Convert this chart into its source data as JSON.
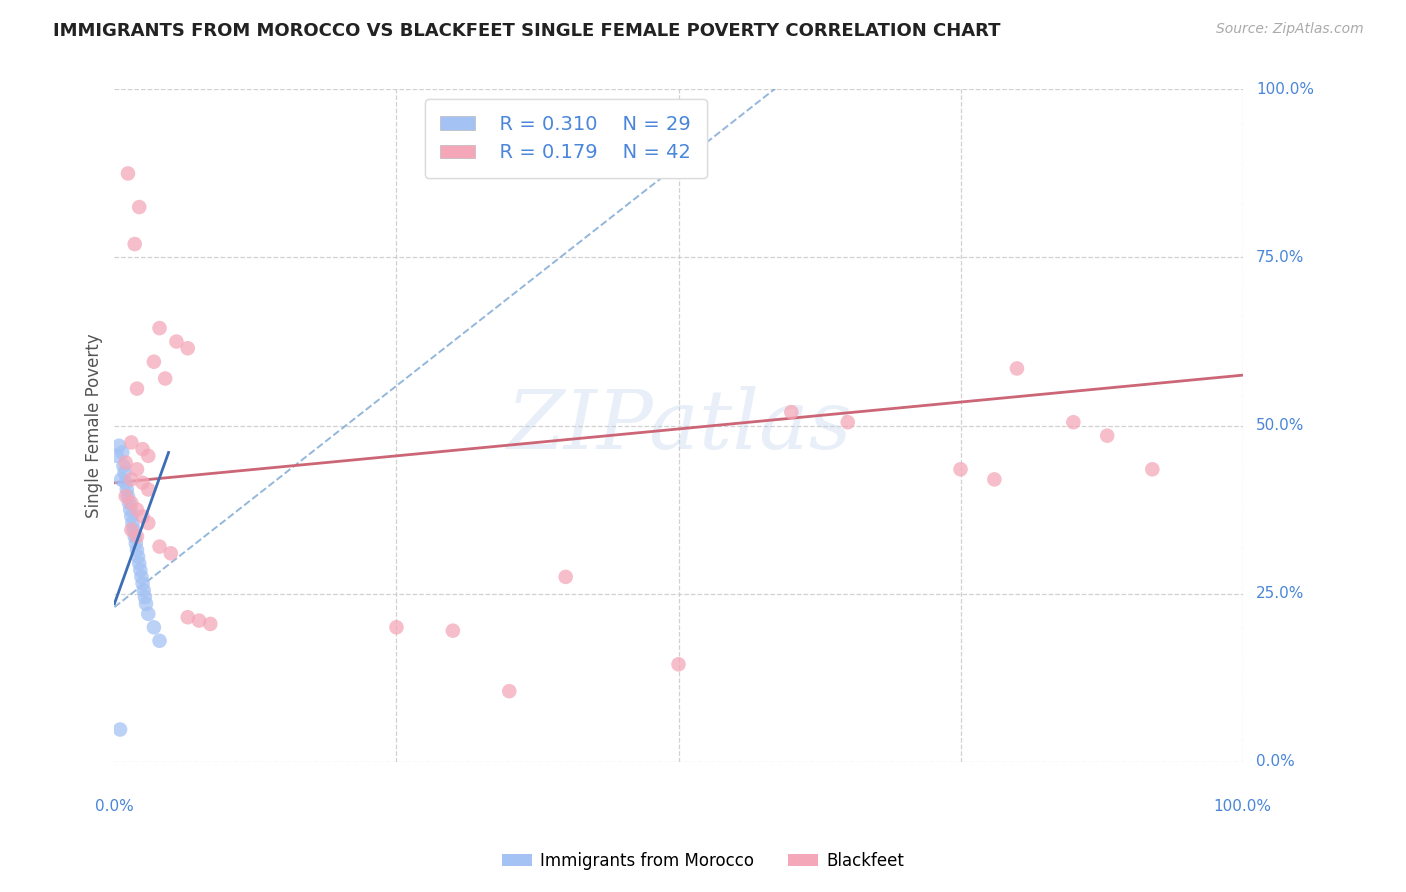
{
  "title": "IMMIGRANTS FROM MOROCCO VS BLACKFEET SINGLE FEMALE POVERTY CORRELATION CHART",
  "source": "Source: ZipAtlas.com",
  "ylabel": "Single Female Poverty",
  "xlim": [
    0.0,
    1.0
  ],
  "ylim": [
    0.0,
    1.0
  ],
  "ytick_values": [
    0.0,
    0.25,
    0.5,
    0.75,
    1.0
  ],
  "xtick_values": [
    0.0,
    0.25,
    0.5,
    0.75,
    1.0
  ],
  "watermark": "ZIPatlas",
  "legend_r1": "R = 0.310",
  "legend_n1": "N = 29",
  "legend_r2": "R = 0.179",
  "legend_n2": "N = 42",
  "blue_scatter_color": "#a4c2f4",
  "pink_scatter_color": "#f4a7b9",
  "blue_line_color": "#6699cc",
  "blue_solid_color": "#3d6eb5",
  "pink_line_color": "#cc6677",
  "grid_color": "#cccccc",
  "background_color": "#ffffff",
  "title_color": "#222222",
  "axis_label_color": "#555555",
  "tick_color": "#4a86d9",
  "legend_text_color": "#4a86d9",
  "morocco_points": [
    [
      0.002,
      0.455
    ],
    [
      0.004,
      0.47
    ],
    [
      0.006,
      0.42
    ],
    [
      0.007,
      0.46
    ],
    [
      0.008,
      0.44
    ],
    [
      0.009,
      0.43
    ],
    [
      0.01,
      0.415
    ],
    [
      0.011,
      0.405
    ],
    [
      0.012,
      0.395
    ],
    [
      0.013,
      0.385
    ],
    [
      0.014,
      0.375
    ],
    [
      0.015,
      0.365
    ],
    [
      0.016,
      0.355
    ],
    [
      0.017,
      0.345
    ],
    [
      0.018,
      0.335
    ],
    [
      0.019,
      0.325
    ],
    [
      0.02,
      0.315
    ],
    [
      0.021,
      0.305
    ],
    [
      0.022,
      0.295
    ],
    [
      0.023,
      0.285
    ],
    [
      0.024,
      0.275
    ],
    [
      0.025,
      0.265
    ],
    [
      0.026,
      0.255
    ],
    [
      0.027,
      0.245
    ],
    [
      0.028,
      0.235
    ],
    [
      0.03,
      0.22
    ],
    [
      0.035,
      0.2
    ],
    [
      0.04,
      0.18
    ],
    [
      0.005,
      0.048
    ]
  ],
  "blackfeet_points": [
    [
      0.012,
      0.875
    ],
    [
      0.022,
      0.825
    ],
    [
      0.018,
      0.77
    ],
    [
      0.04,
      0.645
    ],
    [
      0.055,
      0.625
    ],
    [
      0.065,
      0.615
    ],
    [
      0.035,
      0.595
    ],
    [
      0.045,
      0.57
    ],
    [
      0.02,
      0.555
    ],
    [
      0.015,
      0.475
    ],
    [
      0.025,
      0.465
    ],
    [
      0.03,
      0.455
    ],
    [
      0.01,
      0.445
    ],
    [
      0.02,
      0.435
    ],
    [
      0.015,
      0.42
    ],
    [
      0.025,
      0.415
    ],
    [
      0.03,
      0.405
    ],
    [
      0.01,
      0.395
    ],
    [
      0.015,
      0.385
    ],
    [
      0.02,
      0.375
    ],
    [
      0.025,
      0.365
    ],
    [
      0.03,
      0.355
    ],
    [
      0.015,
      0.345
    ],
    [
      0.02,
      0.335
    ],
    [
      0.04,
      0.32
    ],
    [
      0.05,
      0.31
    ],
    [
      0.065,
      0.215
    ],
    [
      0.075,
      0.21
    ],
    [
      0.085,
      0.205
    ],
    [
      0.25,
      0.2
    ],
    [
      0.3,
      0.195
    ],
    [
      0.4,
      0.275
    ],
    [
      0.35,
      0.105
    ],
    [
      0.5,
      0.145
    ],
    [
      0.6,
      0.52
    ],
    [
      0.65,
      0.505
    ],
    [
      0.75,
      0.435
    ],
    [
      0.78,
      0.42
    ],
    [
      0.8,
      0.585
    ],
    [
      0.85,
      0.505
    ],
    [
      0.88,
      0.485
    ],
    [
      0.92,
      0.435
    ]
  ],
  "morocco_dashed_trendline": [
    [
      0.0,
      0.23
    ],
    [
      0.6,
      1.02
    ]
  ],
  "morocco_solid_trendline": [
    [
      0.0,
      0.235
    ],
    [
      0.048,
      0.46
    ]
  ],
  "blackfeet_trendline": [
    [
      0.0,
      0.415
    ],
    [
      1.0,
      0.575
    ]
  ]
}
